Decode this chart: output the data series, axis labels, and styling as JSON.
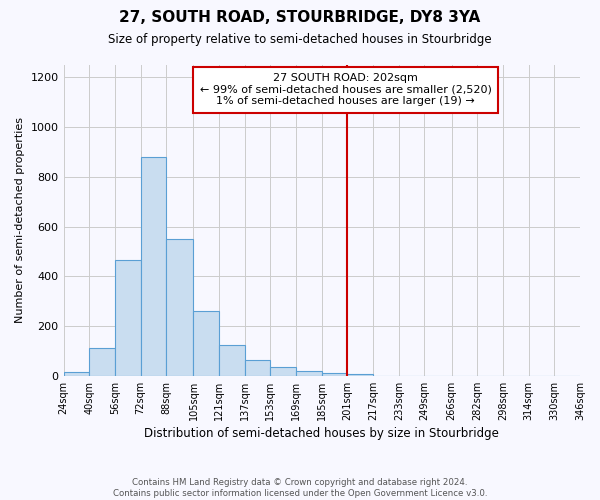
{
  "title": "27, SOUTH ROAD, STOURBRIDGE, DY8 3YA",
  "subtitle": "Size of property relative to semi-detached houses in Stourbridge",
  "xlabel": "Distribution of semi-detached houses by size in Stourbridge",
  "ylabel": "Number of semi-detached properties",
  "bin_labels": [
    "24sqm",
    "40sqm",
    "56sqm",
    "72sqm",
    "88sqm",
    "105sqm",
    "121sqm",
    "137sqm",
    "153sqm",
    "169sqm",
    "185sqm",
    "201sqm",
    "217sqm",
    "233sqm",
    "249sqm",
    "266sqm",
    "282sqm",
    "298sqm",
    "314sqm",
    "330sqm",
    "346sqm"
  ],
  "bin_edges": [
    24,
    40,
    56,
    72,
    88,
    105,
    121,
    137,
    153,
    169,
    185,
    201,
    217,
    233,
    249,
    266,
    282,
    298,
    314,
    330,
    346
  ],
  "bar_heights": [
    15,
    110,
    465,
    880,
    550,
    260,
    125,
    62,
    35,
    20,
    10,
    8,
    0,
    0,
    0,
    0,
    0,
    0,
    0,
    0
  ],
  "bar_color": "#c9ddf0",
  "bar_edge_color": "#5a9fd4",
  "vline_x": 201,
  "vline_color": "#cc0000",
  "ylim": [
    0,
    1250
  ],
  "yticks": [
    0,
    200,
    400,
    600,
    800,
    1000,
    1200
  ],
  "annotation_title": "27 SOUTH ROAD: 202sqm",
  "annotation_line1": "← 99% of semi-detached houses are smaller (2,520)",
  "annotation_line2": "1% of semi-detached houses are larger (19) →",
  "annotation_box_color": "#ffffff",
  "annotation_box_edge_color": "#cc0000",
  "footer1": "Contains HM Land Registry data © Crown copyright and database right 2024.",
  "footer2": "Contains public sector information licensed under the Open Government Licence v3.0.",
  "background_color": "#f8f8ff",
  "grid_color": "#cccccc"
}
